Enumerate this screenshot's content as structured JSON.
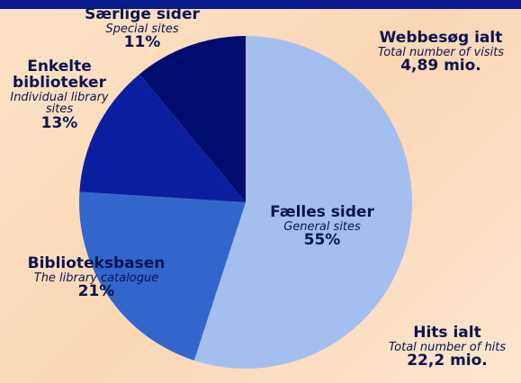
{
  "chart_data": {
    "type": "pie",
    "categories": [
      "Fælles sider",
      "Biblioteksbasen",
      "Enkelte biblioteker",
      "Særlige sider"
    ],
    "subtitles": [
      "General sites",
      "The library catalogue",
      "Individual library sites",
      "Special sites"
    ],
    "values": [
      55,
      21,
      13,
      11
    ],
    "value_labels": [
      "55%",
      "21%",
      "13%",
      "11%"
    ],
    "colors": [
      "#a4bef0",
      "#3366cc",
      "#0a1fa0",
      "#000c6e"
    ],
    "annotations": [
      {
        "title": "Webbesøg ialt",
        "subtitle": "Total number of visits",
        "value": "4,89 mio."
      },
      {
        "title": "Hits ialt",
        "subtitle": "Total number of hits",
        "value": "22,2 mio."
      }
    ]
  }
}
